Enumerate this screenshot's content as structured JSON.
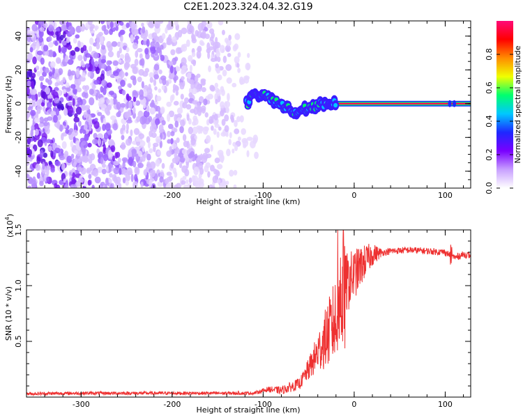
{
  "title": "C2E1.2023.324.04.32.G19",
  "chart_data": [
    {
      "type": "heatmap",
      "xlabel": "Height of straight line (km)",
      "ylabel": "Frequency (Hz)",
      "xlim": [
        -360,
        128
      ],
      "ylim": [
        -50,
        49
      ],
      "x_ticks": [
        -300,
        -200,
        -100,
        0,
        100
      ],
      "y_ticks": [
        -40,
        -20,
        0,
        20,
        40
      ],
      "colorbar": {
        "label": "Normalized spectral amplitude",
        "range": [
          0,
          1
        ],
        "ticks": [
          "0.0",
          "0.2",
          "0.4",
          "0.6",
          "0.8"
        ],
        "colors": [
          "#ffffff",
          "#c8a0ff",
          "#7a00ff",
          "#1e28ff",
          "#00c8ff",
          "#00ff6e",
          "#f0ff00",
          "#ff8c00",
          "#ff0000",
          "#ff0a78"
        ]
      },
      "ridge": [
        {
          "x": -115,
          "y": 6
        },
        {
          "x": -100,
          "y": 5
        },
        {
          "x": -85,
          "y": 1
        },
        {
          "x": -75,
          "y": -2
        },
        {
          "x": -65,
          "y": -5
        },
        {
          "x": -55,
          "y": -3
        },
        {
          "x": -45,
          "y": -2
        },
        {
          "x": -35,
          "y": 0
        },
        {
          "x": -25,
          "y": 0
        },
        {
          "x": 0,
          "y": 0
        },
        {
          "x": 128,
          "y": 0
        }
      ],
      "noise_region": {
        "x_from": -360,
        "x_to": -80
      }
    },
    {
      "type": "line",
      "xlabel": "Height of straight line (km)",
      "ylabel": "SNR (10 * v/v)",
      "y_scale_label": "(x10",
      "y_scale_exponent": "4",
      "y_scale_suffix": ")",
      "xlim": [
        -360,
        128
      ],
      "ylim": [
        0,
        1.5
      ],
      "x_ticks": [
        -300,
        -200,
        -100,
        0,
        100
      ],
      "y_ticks": [
        "0.5",
        "1.0",
        "1.5"
      ],
      "y_tick_values": [
        0.5,
        1.0,
        1.5
      ],
      "color": "#ee3030",
      "series": [
        {
          "x": [
            -360,
            -300,
            -200,
            -110,
            -95,
            -80,
            -60,
            -50,
            -40,
            -30,
            -20,
            -15,
            -10,
            0,
            10,
            20,
            40,
            60,
            80,
            100,
            110,
            120,
            128
          ],
          "y": [
            0.03,
            0.035,
            0.035,
            0.035,
            0.07,
            0.06,
            0.12,
            0.25,
            0.4,
            0.55,
            0.7,
            0.9,
            1.0,
            1.1,
            1.2,
            1.28,
            1.31,
            1.32,
            1.31,
            1.3,
            1.25,
            1.28,
            1.27
          ]
        }
      ]
    }
  ]
}
